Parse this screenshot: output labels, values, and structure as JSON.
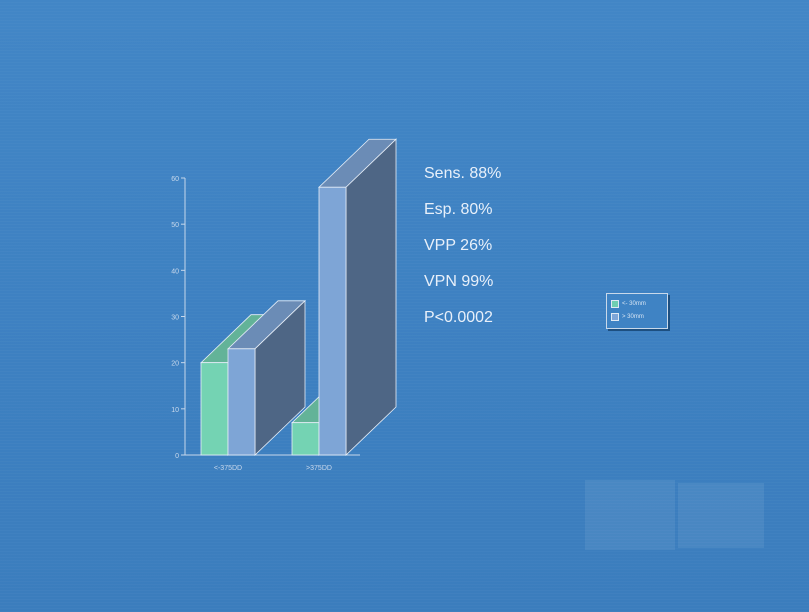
{
  "chart_data": {
    "type": "bar",
    "style": "3d",
    "categories": [
      "<-375DD",
      ">375DD"
    ],
    "series": [
      {
        "name": "<- 30mm",
        "values": [
          20,
          7
        ],
        "color": "#74d3b3"
      },
      {
        "name": "> 30mm",
        "values": [
          23,
          58
        ],
        "color": "#7ea5d6"
      }
    ],
    "ylim": [
      0,
      60
    ],
    "yticks": [
      0,
      10,
      20,
      30,
      40,
      50,
      60
    ],
    "legend_position": "right",
    "annotations": [
      "Sens. 88%",
      "Esp. 80%",
      "VPP 26%",
      "VPN 99%",
      "P<0.0002"
    ]
  }
}
